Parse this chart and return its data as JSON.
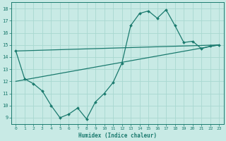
{
  "xlabel": "Humidex (Indice chaleur)",
  "bg_color": "#c8eae5",
  "grid_color": "#a8d8d0",
  "line_color": "#1a7a6e",
  "xlim": [
    -0.5,
    23.5
  ],
  "ylim": [
    8.5,
    18.5
  ],
  "yticks": [
    9,
    10,
    11,
    12,
    13,
    14,
    15,
    16,
    17,
    18
  ],
  "xticks": [
    0,
    1,
    2,
    3,
    4,
    5,
    6,
    7,
    8,
    9,
    10,
    11,
    12,
    13,
    14,
    15,
    16,
    17,
    18,
    19,
    20,
    21,
    22,
    23
  ],
  "curve1_x": [
    0,
    1,
    2,
    3,
    4,
    5,
    6,
    7,
    8,
    9,
    10,
    11,
    12,
    13,
    14,
    15,
    16,
    17,
    18,
    19,
    20,
    21,
    22,
    23
  ],
  "curve1_y": [
    14.5,
    12.2,
    11.8,
    11.2,
    10.0,
    9.0,
    9.3,
    9.8,
    8.9,
    10.3,
    11.0,
    11.9,
    13.5,
    16.6,
    17.6,
    17.8,
    17.2,
    17.9,
    16.6,
    15.2,
    15.3,
    14.7,
    14.9,
    15.0
  ],
  "curve2_x": [
    0,
    23
  ],
  "curve2_y": [
    14.5,
    15.0
  ],
  "curve3_x": [
    0,
    23
  ],
  "curve3_y": [
    12.0,
    15.0
  ],
  "figwidth": 3.2,
  "figheight": 2.0,
  "dpi": 100
}
